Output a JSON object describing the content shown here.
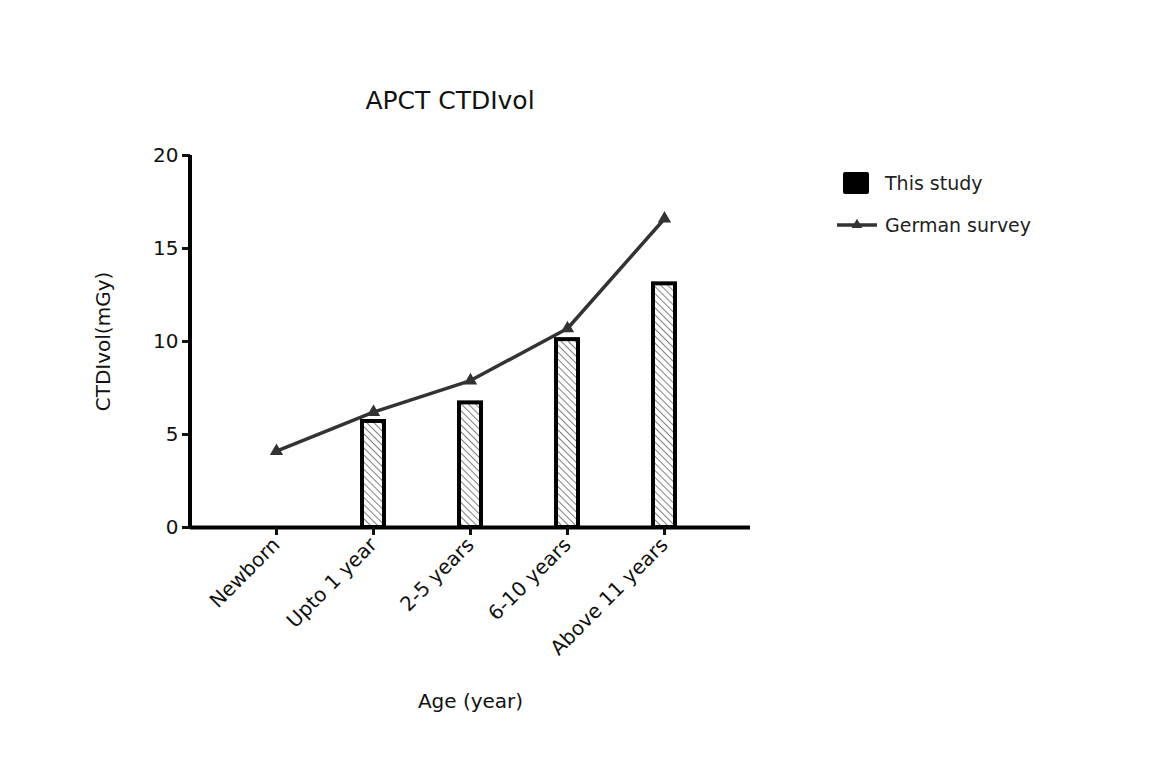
{
  "chart_data": {
    "type": "bar",
    "title": "APCT CTDIvol",
    "x_label": "Age (year)",
    "y_label": "CTDIvol(mGy)",
    "categories": [
      "Newborn",
      "Upto 1 year",
      "2-5 years",
      "6-10 years",
      "Above 11 years"
    ],
    "series": [
      {
        "name": "This study",
        "type": "bar",
        "color": "#000000",
        "values": [
          null,
          5.7,
          6.7,
          10.1,
          13.1
        ]
      },
      {
        "name": "German survey",
        "type": "line",
        "color": "#333333",
        "marker": "triangle",
        "values": [
          4.1,
          6.2,
          7.9,
          10.7,
          16.6
        ]
      }
    ],
    "ylim": [
      0,
      20
    ],
    "yticks": [
      0,
      5,
      10,
      15,
      20
    ],
    "grid": false,
    "legend": "right"
  }
}
